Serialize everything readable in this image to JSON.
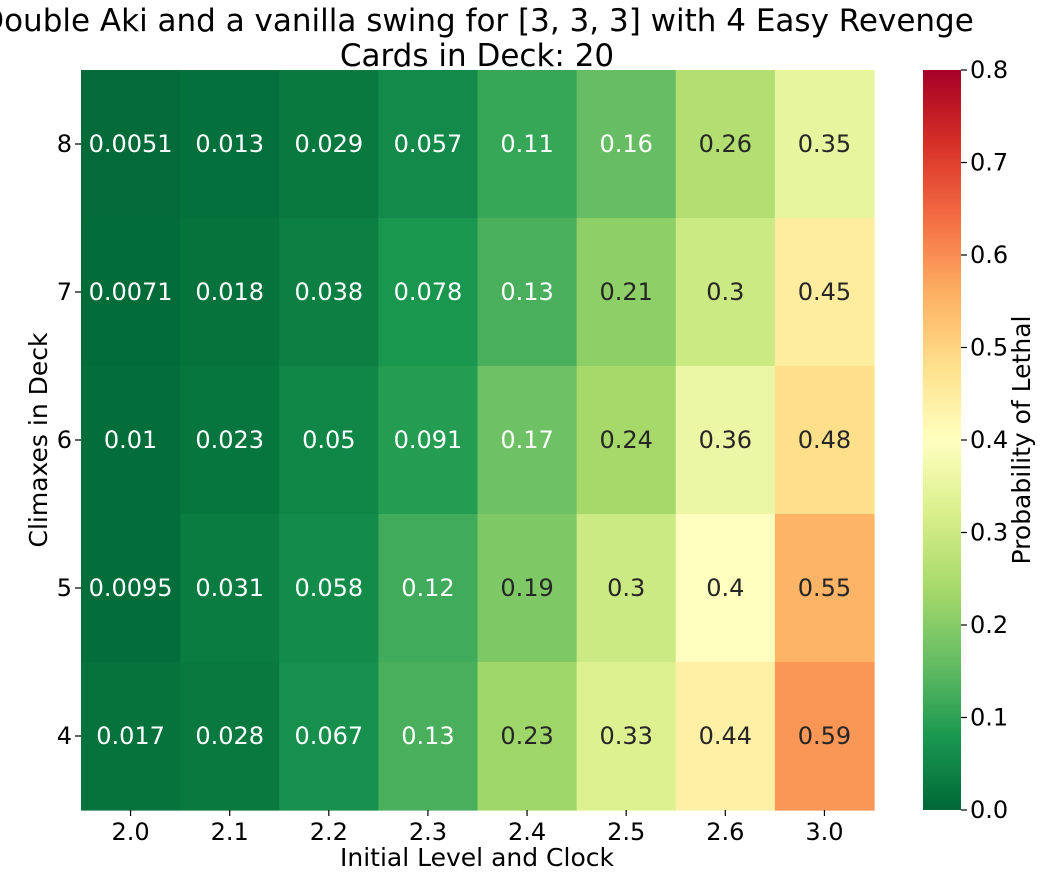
{
  "chart_data": {
    "type": "heatmap",
    "title": "Double Aki and a vanilla swing for [3, 3, 3] with 4 Easy Revenge",
    "subtitle": "Cards in Deck: 20",
    "xlabel": "Initial Level and Clock",
    "ylabel": "Climaxes in Deck",
    "x_categories": [
      "2.0",
      "2.1",
      "2.2",
      "2.3",
      "2.4",
      "2.5",
      "2.6",
      "3.0"
    ],
    "y_categories": [
      "8",
      "7",
      "6",
      "5",
      "4"
    ],
    "values": [
      [
        0.0051,
        0.013,
        0.029,
        0.057,
        0.11,
        0.16,
        0.26,
        0.35
      ],
      [
        0.0071,
        0.018,
        0.038,
        0.078,
        0.13,
        0.21,
        0.3,
        0.45
      ],
      [
        0.01,
        0.023,
        0.05,
        0.091,
        0.17,
        0.24,
        0.36,
        0.48
      ],
      [
        0.0095,
        0.031,
        0.058,
        0.12,
        0.19,
        0.3,
        0.4,
        0.55
      ],
      [
        0.017,
        0.028,
        0.067,
        0.13,
        0.23,
        0.33,
        0.44,
        0.59
      ]
    ],
    "labels": [
      [
        "0.0051",
        "0.013",
        "0.029",
        "0.057",
        "0.11",
        "0.16",
        "0.26",
        "0.35"
      ],
      [
        "0.0071",
        "0.018",
        "0.038",
        "0.078",
        "0.13",
        "0.21",
        "0.3",
        "0.45"
      ],
      [
        "0.01",
        "0.023",
        "0.05",
        "0.091",
        "0.17",
        "0.24",
        "0.36",
        "0.48"
      ],
      [
        "0.0095",
        "0.031",
        "0.058",
        "0.12",
        "0.19",
        "0.3",
        "0.4",
        "0.55"
      ],
      [
        "0.017",
        "0.028",
        "0.067",
        "0.13",
        "0.23",
        "0.33",
        "0.44",
        "0.59"
      ]
    ],
    "colorbar": {
      "label": "Probability of Lethal",
      "vmin": 0.0,
      "vmax": 0.8,
      "ticks": [
        "0.0",
        "0.1",
        "0.2",
        "0.3",
        "0.4",
        "0.5",
        "0.6",
        "0.7",
        "0.8"
      ],
      "colormap": "RdYlGn_r"
    }
  }
}
